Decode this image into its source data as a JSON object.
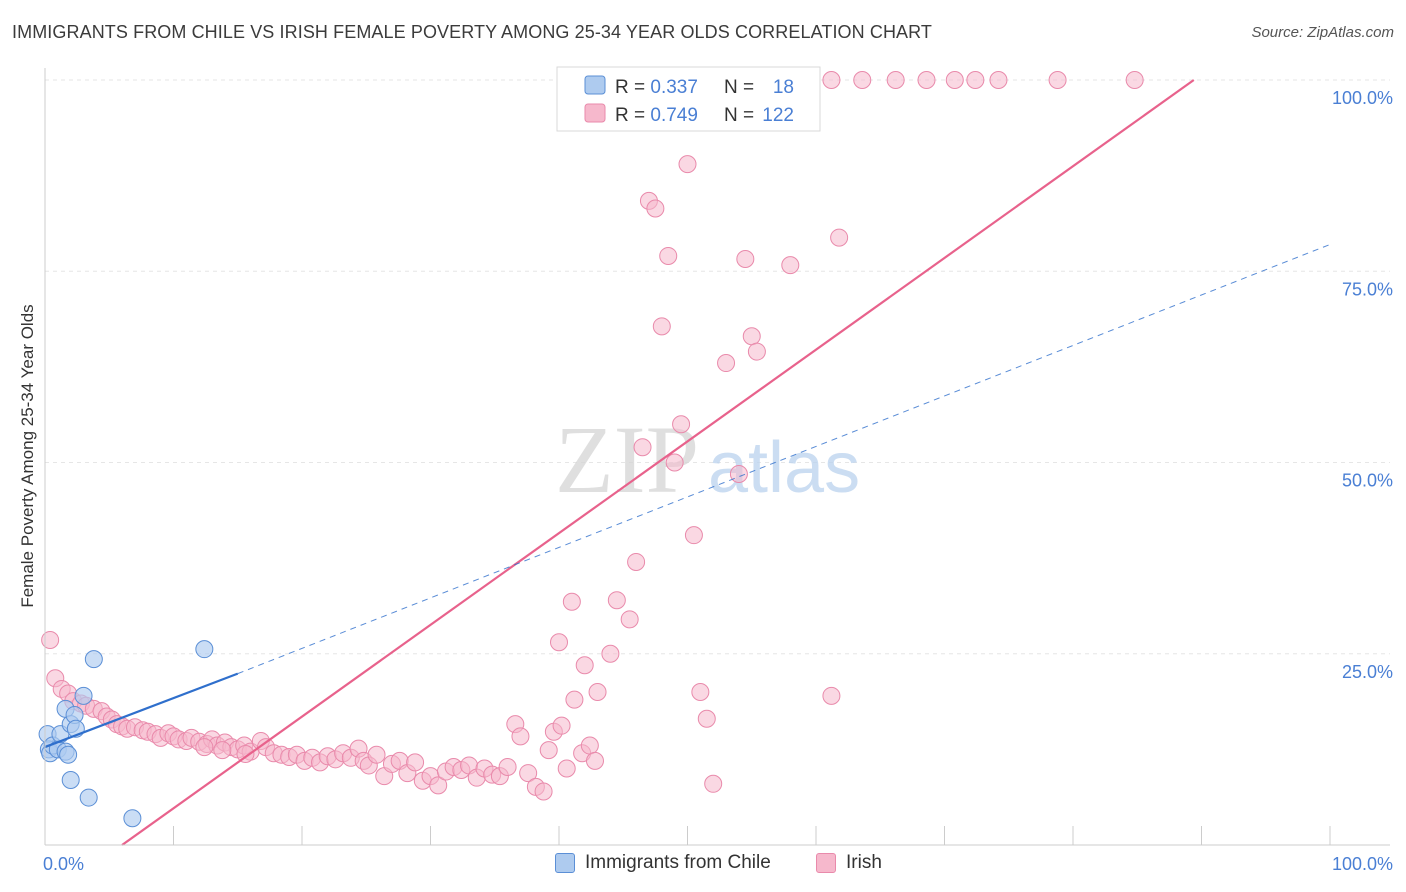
{
  "header": {
    "title": "IMMIGRANTS FROM CHILE VS IRISH FEMALE POVERTY AMONG 25-34 YEAR OLDS CORRELATION CHART",
    "source": "Source: ZipAtlas.com"
  },
  "watermark": {
    "zip": "ZIP",
    "atlas": "atlas"
  },
  "legend_top": {
    "rows": [
      {
        "r_label": "R = ",
        "r_value": "0.337",
        "n_label": "N = ",
        "n_value": "18"
      },
      {
        "r_label": "R = ",
        "r_value": "0.749",
        "n_label": "N = ",
        "n_value": "122"
      }
    ]
  },
  "colors": {
    "chile_fill": "#aecbef",
    "chile_stroke": "#5b8fd6",
    "chile_line": "#2f6fcc",
    "irish_fill": "#f6b8cc",
    "irish_stroke": "#e98aab",
    "irish_line": "#e8628c",
    "value_text": "#4a7fd4",
    "axis": "#cccccc",
    "grid": "#e6e6e6"
  },
  "chart_data": {
    "type": "scatter",
    "xlabel": "",
    "ylabel": "Female Poverty Among 25-34 Year Olds",
    "xlim": [
      0,
      100
    ],
    "ylim": [
      0,
      100
    ],
    "x_tick_labels": [
      "0.0%",
      "100.0%"
    ],
    "y_tick_labels": [
      "25.0%",
      "50.0%",
      "75.0%",
      "100.0%"
    ],
    "y_ticks": [
      25,
      50,
      75,
      100
    ],
    "grid": true,
    "legend_position": "bottom",
    "series": [
      {
        "name": "Immigrants from Chile",
        "R": 0.337,
        "N": 18,
        "points": [
          [
            0.2,
            14.5
          ],
          [
            0.3,
            12.5
          ],
          [
            0.4,
            12.0
          ],
          [
            0.6,
            13.0
          ],
          [
            1.0,
            12.5
          ],
          [
            1.2,
            14.5
          ],
          [
            1.6,
            12.2
          ],
          [
            1.8,
            11.8
          ],
          [
            1.6,
            17.8
          ],
          [
            2.0,
            15.8
          ],
          [
            2.3,
            17.0
          ],
          [
            2.4,
            15.2
          ],
          [
            3.0,
            19.5
          ],
          [
            2.0,
            8.5
          ],
          [
            3.4,
            6.2
          ],
          [
            3.8,
            24.3
          ],
          [
            6.8,
            3.5
          ],
          [
            12.4,
            25.6
          ]
        ],
        "trend": {
          "x": [
            0,
            15
          ],
          "y": [
            12.8,
            22.4
          ]
        },
        "trend_extended": {
          "x": [
            15,
            100
          ],
          "y": [
            22.4,
            78.5
          ]
        }
      },
      {
        "name": "Irish",
        "R": 0.749,
        "N": 122,
        "points": [
          [
            0.4,
            26.8
          ],
          [
            0.8,
            21.8
          ],
          [
            1.3,
            20.4
          ],
          [
            1.8,
            19.8
          ],
          [
            2.2,
            18.8
          ],
          [
            2.8,
            18.5
          ],
          [
            3.2,
            18.2
          ],
          [
            3.8,
            17.8
          ],
          [
            4.4,
            17.5
          ],
          [
            4.8,
            16.8
          ],
          [
            5.2,
            16.4
          ],
          [
            5.6,
            15.8
          ],
          [
            6.0,
            15.5
          ],
          [
            6.4,
            15.2
          ],
          [
            7.0,
            15.4
          ],
          [
            7.6,
            15.0
          ],
          [
            8.0,
            14.8
          ],
          [
            8.6,
            14.5
          ],
          [
            9.0,
            14.0
          ],
          [
            9.6,
            14.6
          ],
          [
            10.0,
            14.2
          ],
          [
            10.4,
            13.8
          ],
          [
            11.0,
            13.6
          ],
          [
            11.4,
            14.0
          ],
          [
            12.0,
            13.5
          ],
          [
            12.6,
            13.2
          ],
          [
            13.0,
            13.8
          ],
          [
            13.4,
            13.0
          ],
          [
            14.0,
            13.4
          ],
          [
            14.5,
            12.8
          ],
          [
            15.0,
            12.5
          ],
          [
            15.5,
            13.0
          ],
          [
            16.0,
            12.2
          ],
          [
            16.8,
            13.6
          ],
          [
            17.2,
            12.8
          ],
          [
            17.8,
            12.0
          ],
          [
            18.4,
            11.8
          ],
          [
            19.0,
            11.5
          ],
          [
            19.6,
            11.8
          ],
          [
            20.2,
            11.0
          ],
          [
            20.8,
            11.4
          ],
          [
            21.4,
            10.8
          ],
          [
            22.0,
            11.6
          ],
          [
            22.6,
            11.2
          ],
          [
            23.2,
            12.0
          ],
          [
            23.8,
            11.4
          ],
          [
            24.4,
            12.6
          ],
          [
            24.8,
            11.0
          ],
          [
            25.2,
            10.4
          ],
          [
            25.8,
            11.8
          ],
          [
            26.4,
            9.0
          ],
          [
            27.0,
            10.6
          ],
          [
            27.6,
            11.0
          ],
          [
            28.2,
            9.4
          ],
          [
            28.8,
            10.8
          ],
          [
            29.4,
            8.4
          ],
          [
            30.0,
            9.0
          ],
          [
            30.6,
            7.8
          ],
          [
            31.2,
            9.6
          ],
          [
            31.8,
            10.2
          ],
          [
            32.4,
            9.8
          ],
          [
            33.0,
            10.4
          ],
          [
            33.6,
            8.8
          ],
          [
            34.2,
            10.0
          ],
          [
            34.8,
            9.2
          ],
          [
            35.4,
            9.0
          ],
          [
            36.0,
            10.2
          ],
          [
            36.6,
            15.8
          ],
          [
            37.0,
            14.2
          ],
          [
            37.6,
            9.4
          ],
          [
            38.2,
            7.6
          ],
          [
            38.8,
            7.0
          ],
          [
            39.2,
            12.4
          ],
          [
            39.6,
            14.8
          ],
          [
            40.2,
            15.6
          ],
          [
            40.6,
            10.0
          ],
          [
            41.2,
            19.0
          ],
          [
            41.8,
            12.0
          ],
          [
            42.4,
            13.0
          ],
          [
            42.8,
            11.0
          ],
          [
            40.0,
            26.5
          ],
          [
            41.0,
            31.8
          ],
          [
            42.0,
            23.5
          ],
          [
            43.0,
            20.0
          ],
          [
            44.0,
            25.0
          ],
          [
            44.5,
            32.0
          ],
          [
            45.5,
            29.5
          ],
          [
            46.0,
            37.0
          ],
          [
            46.5,
            52.0
          ],
          [
            47.0,
            84.2
          ],
          [
            47.5,
            83.2
          ],
          [
            48.0,
            67.8
          ],
          [
            48.5,
            77.0
          ],
          [
            49.0,
            50.0
          ],
          [
            49.5,
            55.0
          ],
          [
            50.0,
            89.0
          ],
          [
            50.5,
            40.5
          ],
          [
            51.0,
            20.0
          ],
          [
            51.5,
            16.5
          ],
          [
            52.0,
            8.0
          ],
          [
            53.0,
            63.0
          ],
          [
            54.0,
            48.5
          ],
          [
            54.5,
            76.6
          ],
          [
            55.0,
            66.5
          ],
          [
            55.4,
            64.5
          ],
          [
            58.0,
            75.8
          ],
          [
            61.2,
            19.5
          ],
          [
            61.8,
            79.4
          ],
          [
            55.8,
            100.0
          ],
          [
            58.6,
            100.0
          ],
          [
            61.2,
            100.0
          ],
          [
            63.6,
            100.0
          ],
          [
            66.2,
            100.0
          ],
          [
            68.6,
            100.0
          ],
          [
            70.8,
            100.0
          ],
          [
            72.4,
            100.0
          ],
          [
            74.2,
            100.0
          ],
          [
            78.8,
            100.0
          ],
          [
            84.8,
            100.0
          ],
          [
            12.4,
            12.8
          ],
          [
            13.8,
            12.4
          ],
          [
            15.6,
            11.9
          ]
        ],
        "trend": {
          "x": [
            6,
            89.4
          ],
          "y": [
            0,
            100
          ]
        }
      }
    ]
  },
  "legend_bottom": {
    "items": [
      {
        "label": "Immigrants from Chile"
      },
      {
        "label": "Irish"
      }
    ]
  }
}
